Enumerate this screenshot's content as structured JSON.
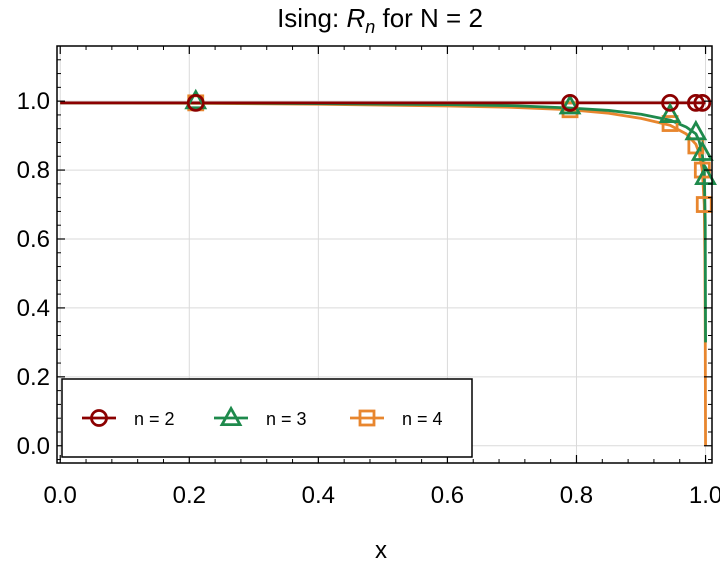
{
  "chart_data": {
    "type": "line",
    "title": {
      "prefix": "Ising: ",
      "symbol": "R",
      "subscript": "n",
      "suffix": " for N = 2"
    },
    "xlabel": "x",
    "ylabel": "",
    "xlim": [
      -0.005,
      1.01
    ],
    "ylim": [
      -0.05,
      1.16
    ],
    "x_ticks": [
      0.0,
      0.2,
      0.4,
      0.6,
      0.8,
      1.0
    ],
    "x_tick_labels": [
      "0.0",
      "0.2",
      "0.4",
      "0.6",
      "0.8",
      "1.0"
    ],
    "y_ticks": [
      0.0,
      0.2,
      0.4,
      0.6,
      0.8,
      1.0
    ],
    "y_tick_labels": [
      "0.0",
      "0.2",
      "0.4",
      "0.6",
      "0.8",
      "1.0"
    ],
    "grid": true,
    "legend_position": "bottom-left",
    "series": [
      {
        "name": "n = 2",
        "color": "#8b0000",
        "marker": "circle",
        "curve": [
          [
            0.0,
            0.995
          ],
          [
            0.5,
            0.995
          ],
          [
            0.99,
            0.995
          ],
          [
            1.0,
            0.995
          ]
        ],
        "markers": [
          [
            0.21,
            0.995
          ],
          [
            0.79,
            0.995
          ],
          [
            0.945,
            0.995
          ],
          [
            0.985,
            0.995
          ],
          [
            0.995,
            0.995
          ]
        ]
      },
      {
        "name": "n = 3",
        "color": "#1e8a4c",
        "marker": "triangle",
        "curve": [
          [
            0.0,
            0.995
          ],
          [
            0.2,
            0.995
          ],
          [
            0.4,
            0.993
          ],
          [
            0.6,
            0.99
          ],
          [
            0.7,
            0.987
          ],
          [
            0.79,
            0.98
          ],
          [
            0.85,
            0.973
          ],
          [
            0.9,
            0.962
          ],
          [
            0.945,
            0.945
          ],
          [
            0.97,
            0.925
          ],
          [
            0.985,
            0.905
          ],
          [
            0.99,
            0.885
          ],
          [
            0.995,
            0.845
          ],
          [
            0.998,
            0.8
          ],
          [
            0.9995,
            0.65
          ],
          [
            1.0,
            0.3
          ]
        ],
        "markers": [
          [
            0.21,
            1.0
          ],
          [
            0.79,
            0.985
          ],
          [
            0.945,
            0.96
          ],
          [
            0.985,
            0.91
          ],
          [
            0.995,
            0.85
          ],
          [
            1.0,
            0.78
          ]
        ]
      },
      {
        "name": "n = 4",
        "color": "#e8862e",
        "marker": "square",
        "curve": [
          [
            0.0,
            0.995
          ],
          [
            0.2,
            0.994
          ],
          [
            0.4,
            0.991
          ],
          [
            0.6,
            0.986
          ],
          [
            0.7,
            0.982
          ],
          [
            0.79,
            0.975
          ],
          [
            0.85,
            0.965
          ],
          [
            0.9,
            0.95
          ],
          [
            0.945,
            0.93
          ],
          [
            0.97,
            0.905
          ],
          [
            0.985,
            0.875
          ],
          [
            0.99,
            0.85
          ],
          [
            0.995,
            0.8
          ],
          [
            0.998,
            0.7
          ],
          [
            0.999,
            0.55
          ],
          [
            0.9995,
            0.35
          ],
          [
            1.0,
            0.0
          ]
        ],
        "markers": [
          [
            0.21,
            0.995
          ],
          [
            0.79,
            0.975
          ],
          [
            0.945,
            0.935
          ],
          [
            0.985,
            0.87
          ],
          [
            0.995,
            0.8
          ],
          [
            0.998,
            0.7
          ]
        ]
      }
    ]
  }
}
